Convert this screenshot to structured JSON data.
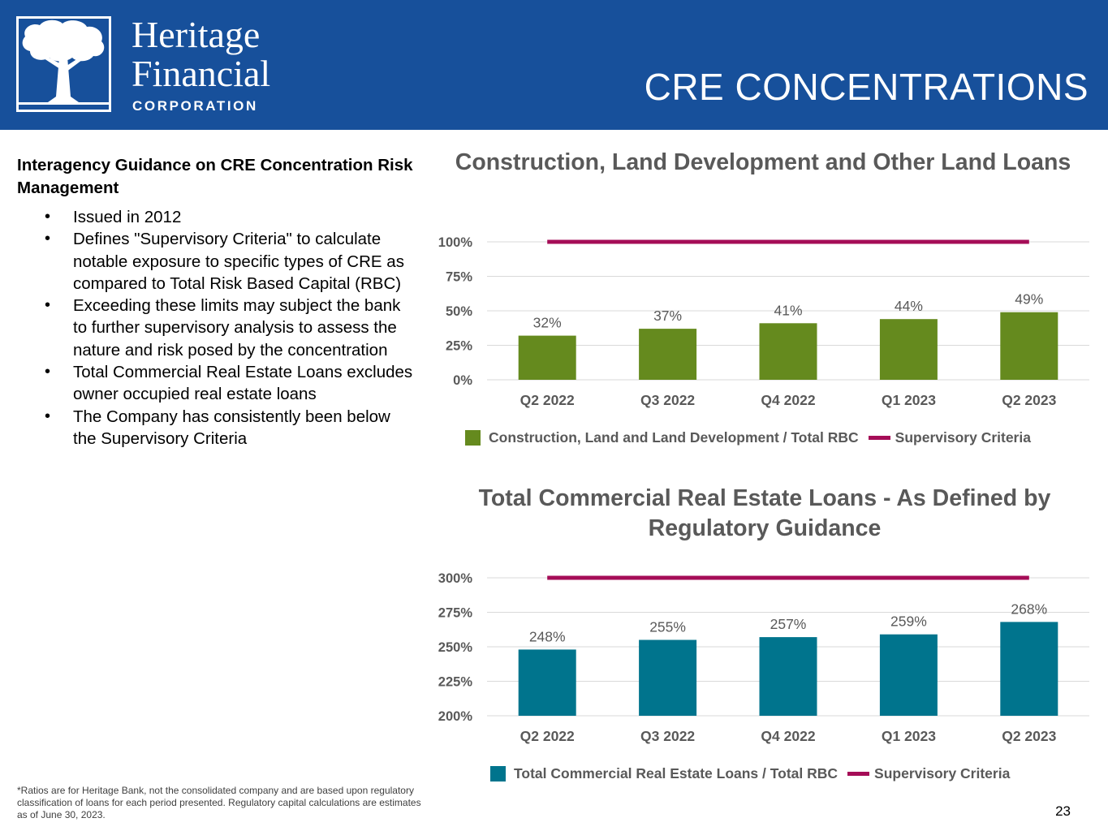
{
  "header": {
    "brand_line1": "Heritage",
    "brand_line2": "Financial",
    "brand_sub": "CORPORATION",
    "slide_title": "CRE CONCENTRATIONS"
  },
  "guidance": {
    "title": "Interagency Guidance on CRE Concentration Risk Management",
    "bullets": [
      "Issued in 2012",
      "Defines \"Supervisory Criteria\" to calculate notable exposure to specific types of CRE as compared to Total Risk Based Capital (RBC)",
      "Exceeding these limits may subject the bank to further supervisory analysis to assess the nature and risk posed by the concentration",
      "Total Commercial Real Estate Loans excludes owner occupied real estate loans",
      "The Company has consistently been below the Supervisory Criteria"
    ]
  },
  "footnote": "*Ratios are for Heritage Bank, not the consolidated company and are based upon regulatory classification of loans for each period presented.  Regulatory capital calculations are estimates as of June 30, 2023.",
  "page_number": "23",
  "colors": {
    "header": "#17509b",
    "green": "#658a1e",
    "teal": "#00748d",
    "criteria": "#a50d57"
  },
  "chart_data": [
    {
      "type": "bar",
      "title": "Construction, Land Development and Other Land Loans",
      "categories": [
        "Q2 2022",
        "Q3 2022",
        "Q4 2022",
        "Q1 2023",
        "Q2 2023"
      ],
      "series": [
        {
          "name": "Construction, Land and Land Development / Total RBC",
          "values": [
            32,
            37,
            41,
            44,
            49
          ],
          "color": "#658a1e",
          "kind": "bar"
        },
        {
          "name": "Supervisory Criteria",
          "values": [
            100,
            100,
            100,
            100,
            100
          ],
          "color": "#a50d57",
          "kind": "line"
        }
      ],
      "data_labels": [
        "32%",
        "37%",
        "41%",
        "44%",
        "49%"
      ],
      "yticks": [
        0,
        25,
        50,
        75,
        100
      ],
      "ytick_labels": [
        "0%",
        "25%",
        "50%",
        "75%",
        "100%"
      ],
      "ylim": [
        0,
        100
      ],
      "xlabel": "",
      "ylabel": "",
      "legend_position": "bottom"
    },
    {
      "type": "bar",
      "title": "Total Commercial Real Estate Loans - As Defined by Regulatory Guidance",
      "categories": [
        "Q2 2022",
        "Q3 2022",
        "Q4 2022",
        "Q1 2023",
        "Q2 2023"
      ],
      "series": [
        {
          "name": "Total Commercial Real Estate Loans / Total RBC",
          "values": [
            248,
            255,
            257,
            259,
            268
          ],
          "color": "#00748d",
          "kind": "bar"
        },
        {
          "name": "Supervisory Criteria",
          "values": [
            300,
            300,
            300,
            300,
            300
          ],
          "color": "#a50d57",
          "kind": "line"
        }
      ],
      "data_labels": [
        "248%",
        "255%",
        "257%",
        "259%",
        "268%"
      ],
      "yticks": [
        200,
        225,
        250,
        275,
        300
      ],
      "ytick_labels": [
        "200%",
        "225%",
        "250%",
        "275%",
        "300%"
      ],
      "ylim": [
        200,
        300
      ],
      "xlabel": "",
      "ylabel": "",
      "legend_position": "bottom"
    }
  ]
}
